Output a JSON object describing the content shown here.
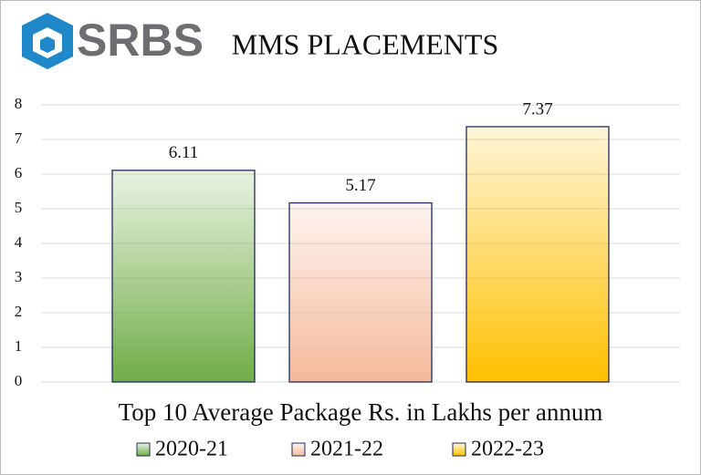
{
  "chart_data": {
    "type": "bar",
    "logo": "SRBS",
    "title": "MMS PLACEMENTS",
    "x_label": "Top 10 Average Package Rs. in Lakhs per annum",
    "categories": [
      null
    ],
    "series": [
      {
        "name": "2020-21",
        "color": "#70ad47",
        "values": [
          6.11
        ]
      },
      {
        "name": "2021-22",
        "color": "#f4b99b",
        "values": [
          5.17
        ]
      },
      {
        "name": "2022-23",
        "color": "#ffc000",
        "values": [
          7.37
        ]
      }
    ],
    "ylim": [
      0,
      8
    ],
    "yticks": [
      0,
      1,
      2,
      3,
      4,
      5,
      6,
      7,
      8
    ],
    "grid": true,
    "legend": "bottom"
  }
}
